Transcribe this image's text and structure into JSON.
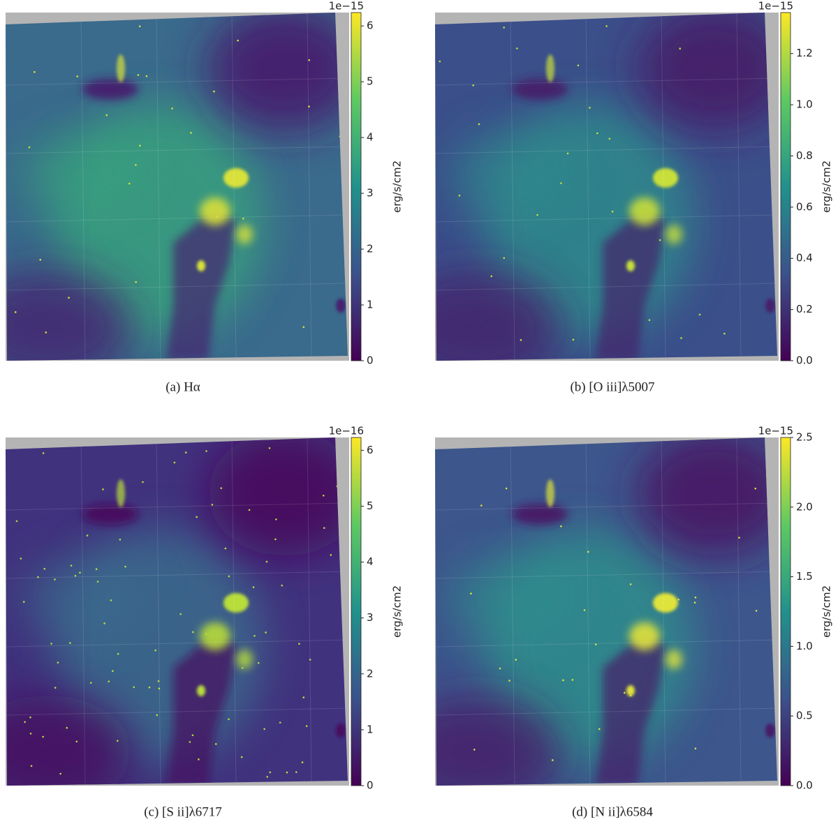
{
  "chart_data": [
    {
      "type": "image",
      "caption": "(a) Hα",
      "colorbar_label": "erg/s/cm2",
      "offset_text": "1e−15",
      "clim": [
        0,
        6.24
      ],
      "cticks": [
        0,
        1,
        2,
        3,
        4,
        5,
        6
      ]
    },
    {
      "type": "image",
      "caption": "(b)  [O iii]λ5007",
      "colorbar_label": "erg/s/cm2",
      "offset_text": "1e−15",
      "clim": [
        0,
        1.36
      ],
      "cticks": [
        {
          "value": 0,
          "label": "0.0"
        },
        0.2,
        0.4,
        0.6,
        0.8,
        {
          "value": 1,
          "label": "1.0"
        },
        1.2
      ]
    },
    {
      "type": "image",
      "caption": "(c)  [S ii]λ6717",
      "colorbar_label": "erg/s/cm2",
      "offset_text": "1e−16",
      "clim": [
        0,
        6.23
      ],
      "cticks": [
        0,
        1,
        2,
        3,
        4,
        5,
        6
      ]
    },
    {
      "type": "image",
      "caption": "(d)  [N ii]λ6584",
      "colorbar_label": "erg/s/cm2",
      "offset_text": "1e−15",
      "clim": [
        0,
        2.5
      ],
      "cticks": [
        {
          "value": 0,
          "label": "0.0"
        },
        0.5,
        {
          "value": 1,
          "label": "1.0"
        },
        1.5,
        {
          "value": 2,
          "label": "2.0"
        },
        2.5
      ]
    }
  ]
}
